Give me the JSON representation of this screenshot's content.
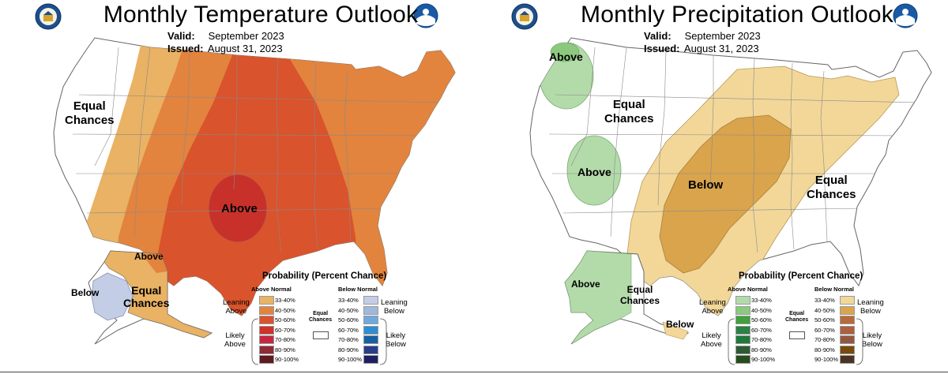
{
  "panels": [
    {
      "id": "temperature",
      "title": "Monthly Temperature Outlook",
      "valid_label": "Valid:",
      "valid_value": "September 2023",
      "issued_label": "Issued:",
      "issued_value": "August 31, 2023",
      "map_labels": {
        "conus_ec": "Equal\nChances",
        "conus_main": "Above",
        "ak_north": "Above",
        "ak_west": "Below",
        "ak_ec": "Equal\nChances"
      },
      "colors": {
        "base": "#e2833e",
        "lean": "#e9b264",
        "core": "#d9532c",
        "max": "#c8302a",
        "ak_north": "#e9b264",
        "ak_west": "#c4cde6"
      }
    },
    {
      "id": "precipitation",
      "title": "Monthly Precipitation Outlook",
      "valid_label": "Valid:",
      "valid_value": "September 2023",
      "issued_label": "Issued:",
      "issued_value": "August 31, 2023",
      "map_labels": {
        "wa_above": "Above",
        "conus_ec_nw": "Equal\nChances",
        "west_above": "Above",
        "conus_below": "Below",
        "conus_ec_e": "Equal\nChances",
        "ak_above": "Above",
        "ak_ec": "Equal\nChances",
        "ak_below": "Below"
      },
      "colors": {
        "lean": "#f2d799",
        "below": "#d9a44c",
        "green": "#b3dbaa",
        "green_dark": "#8cc97e"
      }
    }
  ],
  "legend": {
    "title": "Probability (Percent Chance)",
    "temperature": {
      "left_head": "Above Normal",
      "right_head": "Below Normal",
      "left_lean": "Leaning\nAbove",
      "left_likely": "Likely\nAbove",
      "right_lean": "Leaning\nBelow",
      "right_likely": "Likely\nBelow",
      "left_colors": [
        "#e9b264",
        "#e2833e",
        "#d9532c",
        "#d2302a",
        "#c82640",
        "#902a35",
        "#5e1a1e"
      ],
      "right_colors": [
        "#c4cde6",
        "#9fb8db",
        "#6fa9de",
        "#2d8ed3",
        "#1660a4",
        "#283d8c",
        "#1d2060"
      ]
    },
    "precipitation": {
      "left_head": "Above Normal",
      "right_head": "Below Normal",
      "left_lean": "Leaning\nAbove",
      "left_likely": "Likely\nAbove",
      "right_lean": "Leaning\nBelow",
      "right_likely": "Likely\nBelow",
      "left_colors": [
        "#b3dbaa",
        "#8cc97e",
        "#3fa23a",
        "#2a8342",
        "#1f7a3a",
        "#2e5b34",
        "#264d1c"
      ],
      "right_colors": [
        "#f2d799",
        "#d9a44c",
        "#b86a3a",
        "#ad5f3f",
        "#95563f",
        "#7a4a0a",
        "#4a3322"
      ]
    },
    "ranges": [
      "33-40%",
      "40-50%",
      "50-60%",
      "60-70%",
      "70-80%",
      "80-90%",
      "90-100%"
    ],
    "ec_head": "Equal\nChances"
  }
}
